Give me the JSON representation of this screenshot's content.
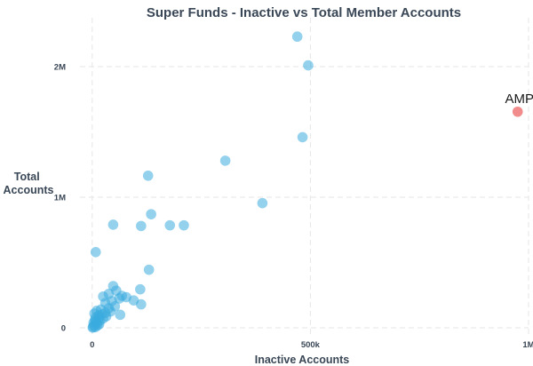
{
  "chart_data": {
    "type": "scatter",
    "title": "Super Funds - Inactive vs Total Member Accounts",
    "xlabel": "Inactive Accounts",
    "ylabel": "Total Accounts",
    "xlim": [
      -20000,
      1000000
    ],
    "ylim": [
      -20000,
      2320000
    ],
    "x_ticks": [
      {
        "value": 0,
        "label": "0"
      },
      {
        "value": 500000,
        "label": "500k"
      },
      {
        "value": 1000000,
        "label": "1M"
      }
    ],
    "y_ticks": [
      {
        "value": 0,
        "label": "0"
      },
      {
        "value": 1000000,
        "label": "1M"
      },
      {
        "value": 2000000,
        "label": "2M"
      }
    ],
    "grid": true,
    "colors": {
      "point": "#3aabdf",
      "highlight": "#f07878"
    },
    "series": [
      {
        "points": [
          {
            "x": 470000,
            "y": 2230000
          },
          {
            "x": 495000,
            "y": 2010000
          },
          {
            "x": 482000,
            "y": 1460000
          },
          {
            "x": 305000,
            "y": 1280000
          },
          {
            "x": 390000,
            "y": 955000
          },
          {
            "x": 128000,
            "y": 1165000
          },
          {
            "x": 135000,
            "y": 870000
          },
          {
            "x": 48000,
            "y": 790000
          },
          {
            "x": 112000,
            "y": 780000
          },
          {
            "x": 178000,
            "y": 785000
          },
          {
            "x": 210000,
            "y": 785000
          },
          {
            "x": 8000,
            "y": 580000
          },
          {
            "x": 130000,
            "y": 445000
          },
          {
            "x": 48000,
            "y": 320000
          },
          {
            "x": 38000,
            "y": 260000
          },
          {
            "x": 55000,
            "y": 285000
          },
          {
            "x": 110000,
            "y": 295000
          },
          {
            "x": 25000,
            "y": 240000
          },
          {
            "x": 68000,
            "y": 245000
          },
          {
            "x": 78000,
            "y": 235000
          },
          {
            "x": 95000,
            "y": 210000
          },
          {
            "x": 112000,
            "y": 180000
          },
          {
            "x": 62000,
            "y": 225000
          },
          {
            "x": 45000,
            "y": 205000
          },
          {
            "x": 30000,
            "y": 190000
          },
          {
            "x": 52000,
            "y": 165000
          },
          {
            "x": 38000,
            "y": 150000
          },
          {
            "x": 20000,
            "y": 140000
          },
          {
            "x": 64000,
            "y": 100000
          },
          {
            "x": 42000,
            "y": 125000
          },
          {
            "x": 30000,
            "y": 115000
          },
          {
            "x": 22000,
            "y": 105000
          },
          {
            "x": 15000,
            "y": 95000
          },
          {
            "x": 10000,
            "y": 130000
          },
          {
            "x": 5000,
            "y": 110000
          },
          {
            "x": 8000,
            "y": 80000
          },
          {
            "x": 14000,
            "y": 70000
          },
          {
            "x": 18000,
            "y": 55000
          },
          {
            "x": 6000,
            "y": 60000
          },
          {
            "x": 3000,
            "y": 40000
          },
          {
            "x": 10000,
            "y": 35000
          },
          {
            "x": 4000,
            "y": 20000
          },
          {
            "x": 12000,
            "y": 18000
          },
          {
            "x": 2000,
            "y": 8000
          },
          {
            "x": 7000,
            "y": 5000
          },
          {
            "x": 1000,
            "y": 2000
          },
          {
            "x": 16000,
            "y": 28000
          },
          {
            "x": 25000,
            "y": 72000
          },
          {
            "x": 32000,
            "y": 88000
          },
          {
            "x": 8000,
            "y": 48000
          }
        ]
      },
      {
        "points": [
          {
            "x": 975000,
            "y": 1655000,
            "label": "AMP"
          }
        ]
      }
    ]
  }
}
